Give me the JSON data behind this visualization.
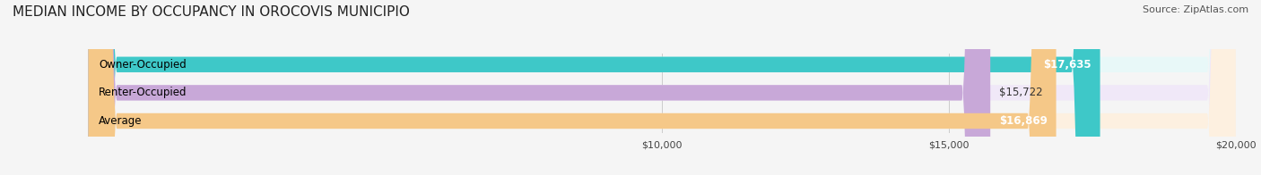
{
  "title": "MEDIAN INCOME BY OCCUPANCY IN OROCOVIS MUNICIPIO",
  "source": "Source: ZipAtlas.com",
  "categories": [
    "Owner-Occupied",
    "Renter-Occupied",
    "Average"
  ],
  "values": [
    17635,
    15722,
    16869
  ],
  "bar_colors": [
    "#3ec8c8",
    "#c8a8d8",
    "#f5c888"
  ],
  "bar_bg_colors": [
    "#e8f8f8",
    "#f0e8f8",
    "#fdf0e0"
  ],
  "value_labels": [
    "$17,635",
    "$15,722",
    "$16,869"
  ],
  "value_inside": [
    true,
    false,
    true
  ],
  "xmin": 0,
  "xmax": 20000,
  "xticks": [
    10000,
    15000,
    20000
  ],
  "xtick_labels": [
    "$10,000",
    "$15,000",
    "$20,000"
  ],
  "fig_width": 14.06,
  "fig_height": 1.96,
  "background_color": "#f5f5f5",
  "title_fontsize": 11,
  "source_fontsize": 8,
  "label_fontsize": 8.5,
  "value_fontsize": 8.5,
  "bar_height": 0.55
}
